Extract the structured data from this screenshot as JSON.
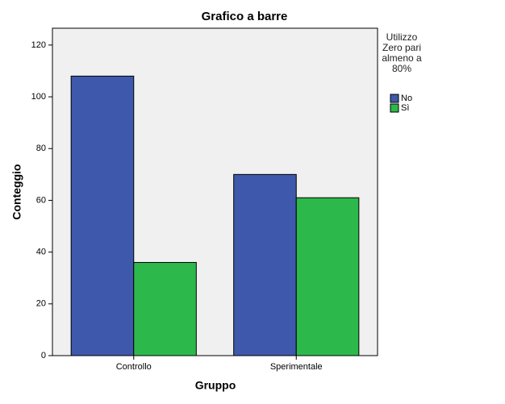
{
  "chart_data": {
    "type": "bar",
    "title": "Grafico a barre",
    "x_label": "Gruppo",
    "y_label": "Conteggio",
    "legend_title": "Utilizzo Zero pari almeno a 80%",
    "categories": [
      "Controllo",
      "Sperimentale"
    ],
    "series": [
      {
        "name": "No",
        "color": "#3e58ac",
        "values": [
          108,
          70
        ]
      },
      {
        "name": "Sì",
        "color": "#2db84b",
        "values": [
          36,
          61
        ]
      }
    ],
    "ylim": [
      0,
      126.5
    ],
    "yticks": [
      0,
      20,
      40,
      60,
      80,
      100,
      120
    ],
    "legend": "right"
  }
}
